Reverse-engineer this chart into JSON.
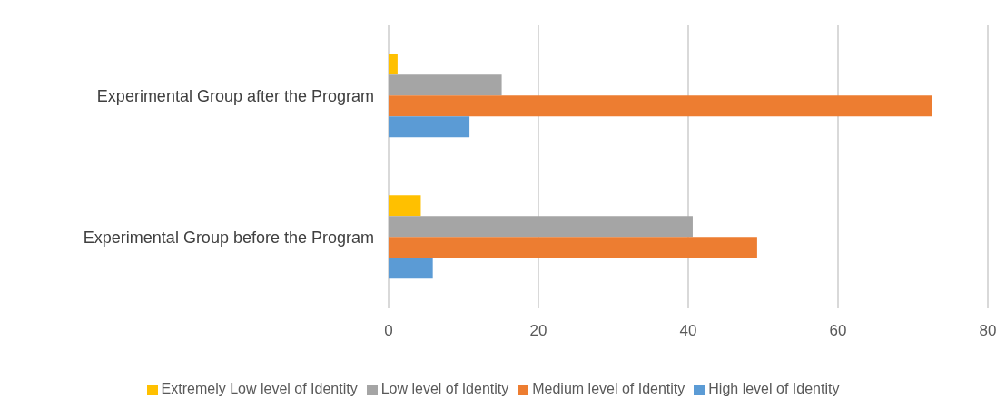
{
  "chart_data": {
    "type": "bar",
    "orientation": "horizontal",
    "categories": [
      "Experimental Group after the Program",
      "Experimental Group before the Program"
    ],
    "series": [
      {
        "name": "Extremely Low level of Identity",
        "color": "#ffc000",
        "values": [
          1.2,
          4.3
        ]
      },
      {
        "name": "Low level of Identity",
        "color": "#a5a5a5",
        "values": [
          15.1,
          40.6
        ]
      },
      {
        "name": "Medium level of Identity",
        "color": "#ed7d31",
        "values": [
          72.6,
          49.2
        ]
      },
      {
        "name": "High level of Identity",
        "color": "#5b9bd5",
        "values": [
          10.8,
          5.9
        ]
      }
    ],
    "xlim": [
      0,
      80
    ],
    "xticks": [
      0,
      20,
      40,
      60,
      80
    ],
    "grid": "x",
    "legend": "bottom"
  }
}
